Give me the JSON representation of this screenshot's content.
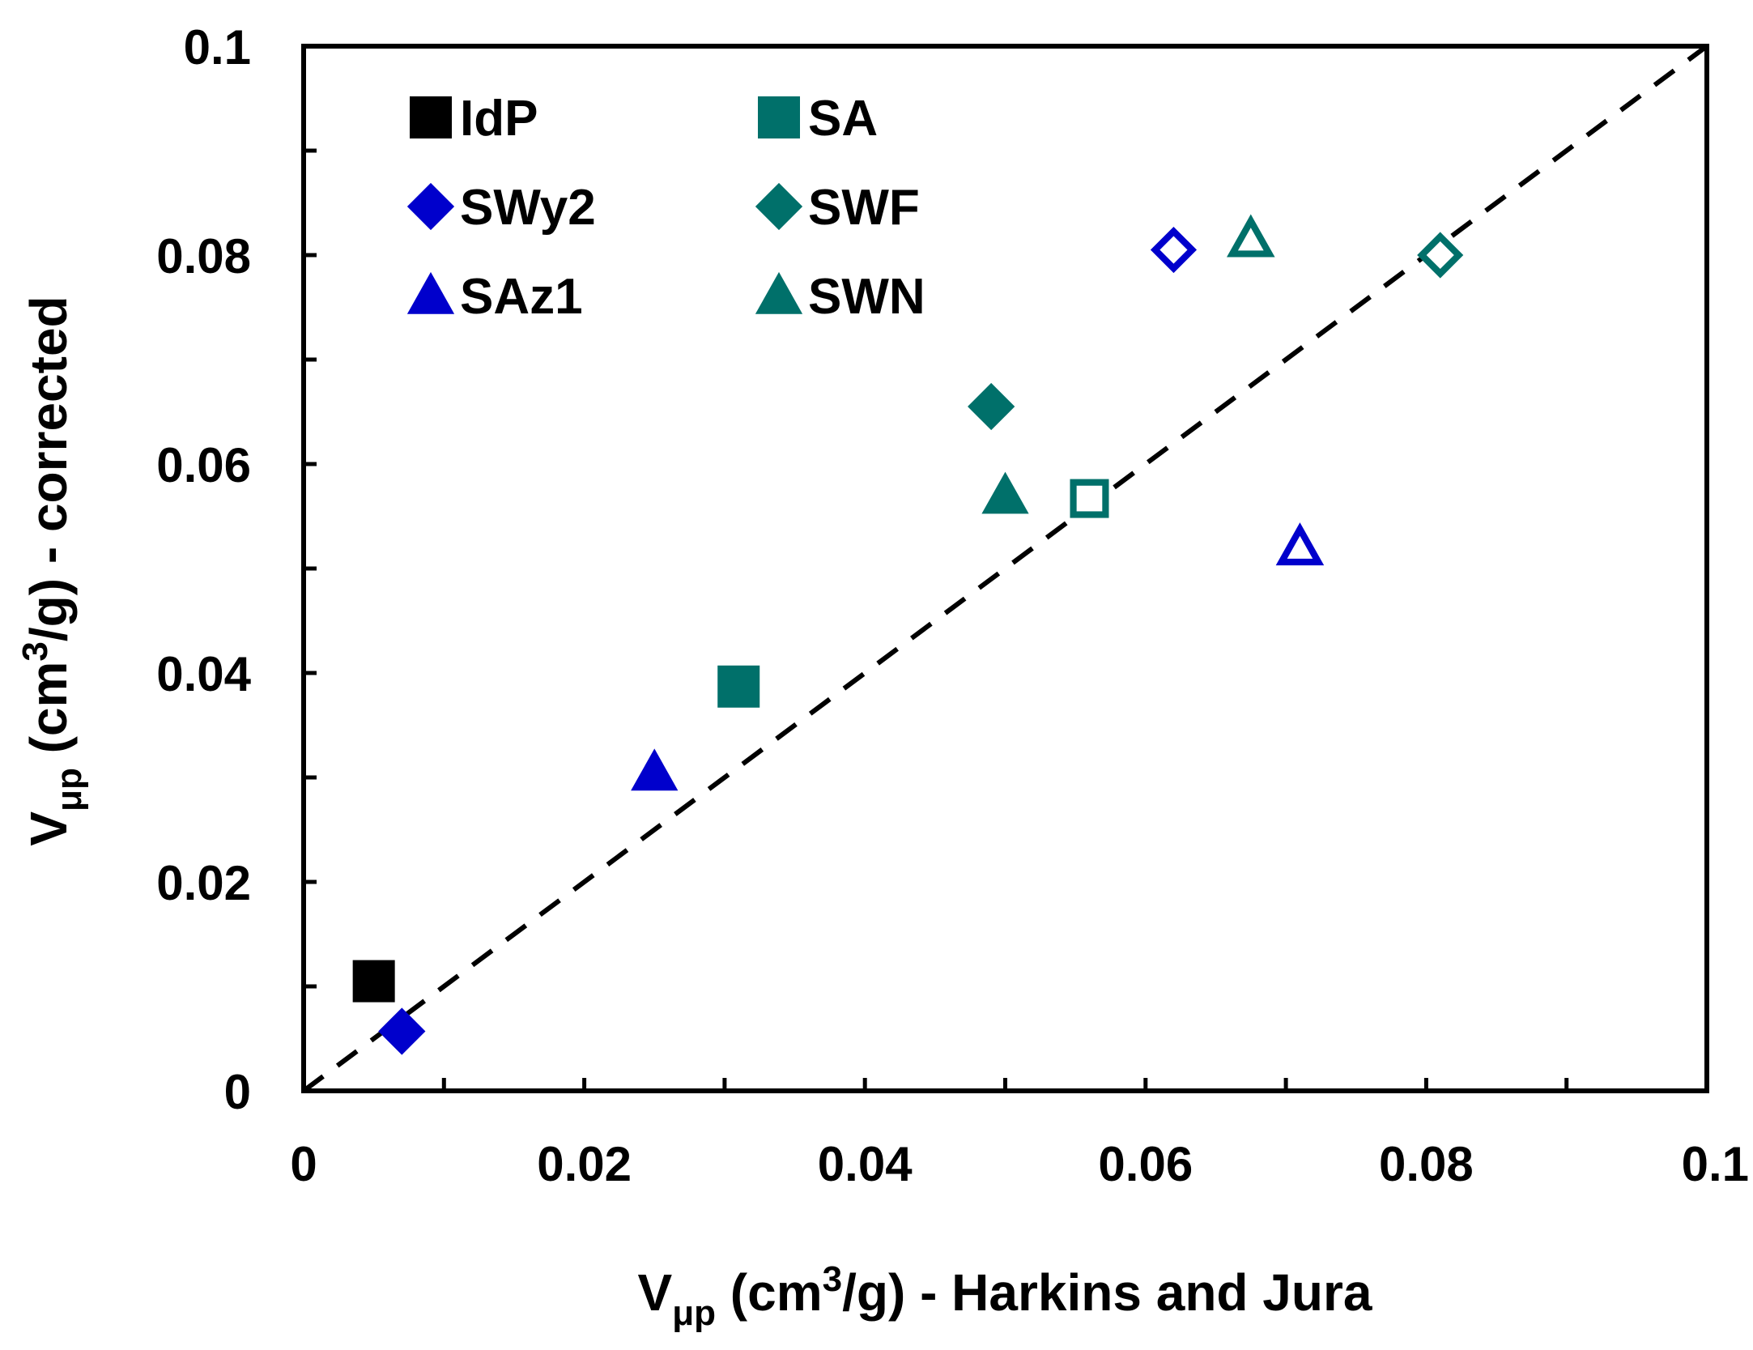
{
  "chart_data": {
    "type": "scatter",
    "xlabel": {
      "base": "V",
      "sub": "μp",
      "pre": " (cm",
      "sup": "3",
      "post": "/g) - Harkins and Jura"
    },
    "ylabel": {
      "base": "V",
      "sub": "μp",
      "pre": " (cm",
      "sup": "3",
      "post": "/g) - corrected"
    },
    "xlim": [
      0,
      0.1
    ],
    "ylim": [
      0,
      0.1
    ],
    "x_ticks": [
      0,
      0.02,
      0.04,
      0.06,
      0.08,
      0.1
    ],
    "y_ticks": [
      0,
      0.02,
      0.04,
      0.06,
      0.08,
      0.1
    ],
    "x_tick_labels": [
      "0",
      "0.02",
      "0.04",
      "0.06",
      "0.08",
      "0.1"
    ],
    "y_tick_labels": [
      "0",
      "0.02",
      "0.04",
      "0.06",
      "0.08",
      "0.1"
    ],
    "reference_line": {
      "style": "dashed",
      "from": [
        0,
        0
      ],
      "to": [
        0.1,
        0.1
      ]
    },
    "legend_position": "top-left",
    "series": [
      {
        "name": "IdP",
        "marker": "square",
        "color": "#000000",
        "filled": [
          {
            "x": 0.005,
            "y": 0.0105
          }
        ],
        "open": []
      },
      {
        "name": "SA",
        "marker": "square",
        "color": "#00706A",
        "filled": [
          {
            "x": 0.031,
            "y": 0.0387
          }
        ],
        "open": [
          {
            "x": 0.056,
            "y": 0.0567
          }
        ]
      },
      {
        "name": "SWy2",
        "marker": "diamond",
        "color": "#0000CC",
        "filled": [
          {
            "x": 0.007,
            "y": 0.0057
          }
        ],
        "open": [
          {
            "x": 0.062,
            "y": 0.0805
          }
        ]
      },
      {
        "name": "SWF",
        "marker": "diamond",
        "color": "#00706A",
        "filled": [
          {
            "x": 0.049,
            "y": 0.0655
          }
        ],
        "open": [
          {
            "x": 0.081,
            "y": 0.08
          }
        ]
      },
      {
        "name": "SAz1",
        "marker": "triangle",
        "color": "#0000CC",
        "filled": [
          {
            "x": 0.025,
            "y": 0.0305
          }
        ],
        "open": [
          {
            "x": 0.071,
            "y": 0.052
          }
        ]
      },
      {
        "name": "SWN",
        "marker": "triangle",
        "color": "#00706A",
        "filled": [
          {
            "x": 0.05,
            "y": 0.057
          }
        ],
        "open": [
          {
            "x": 0.0675,
            "y": 0.0815
          }
        ]
      }
    ]
  }
}
